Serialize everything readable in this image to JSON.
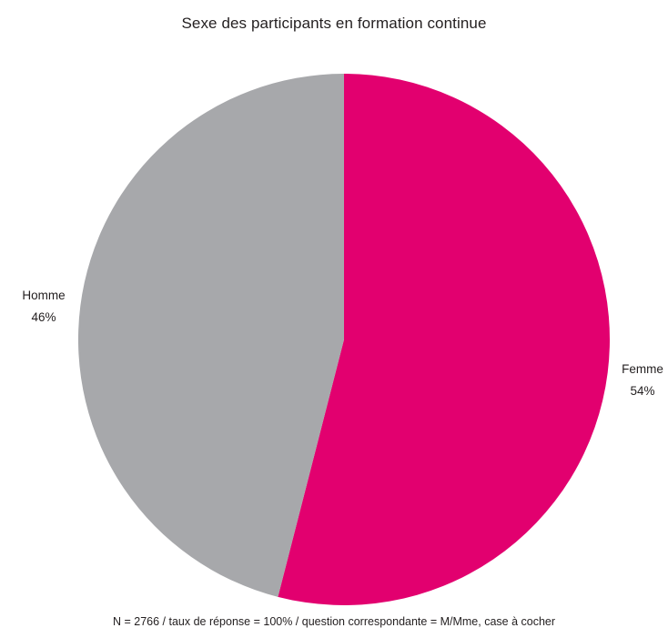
{
  "chart_data": {
    "type": "pie",
    "title": "Sexe des participants en formation continue",
    "categories": [
      "Femme",
      "Homme"
    ],
    "values": [
      54,
      46
    ],
    "value_labels": [
      "54%",
      "46%"
    ],
    "colors": [
      "#e2006f",
      "#a7a8ab"
    ],
    "note": "N = 2766 / taux de réponse = 100% / question correspondante = M/Mme, case à cocher",
    "legend": "none"
  }
}
